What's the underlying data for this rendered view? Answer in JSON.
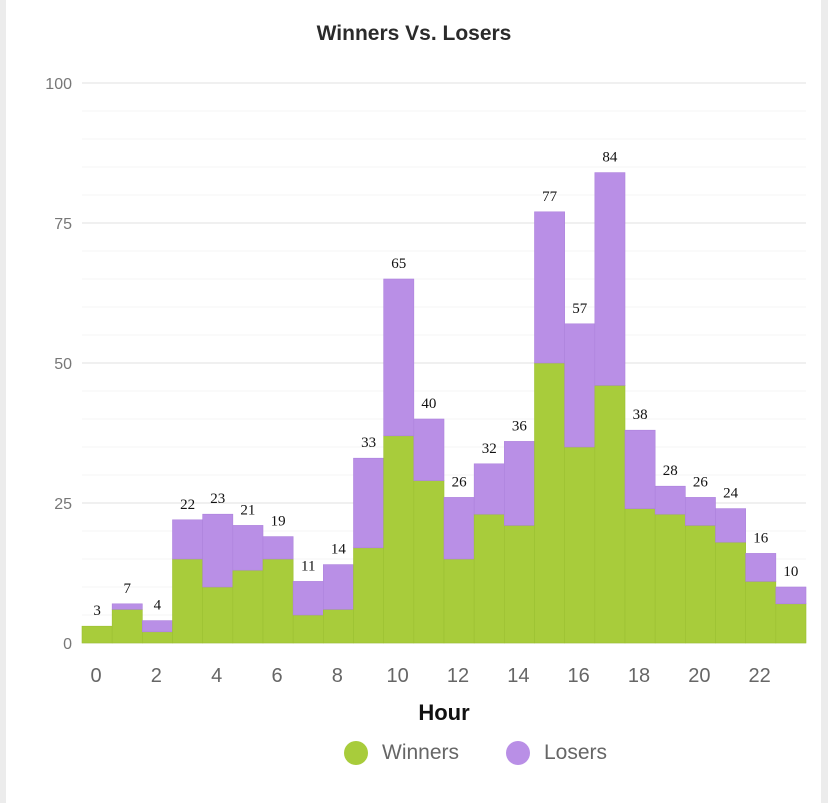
{
  "chart_data": {
    "type": "bar",
    "stacked": true,
    "title": "Winners Vs. Losers",
    "xlabel": "Hour",
    "ylabel": "",
    "ylim": [
      0,
      100
    ],
    "yticks": [
      0,
      25,
      50,
      75,
      100
    ],
    "xticks": [
      0,
      2,
      4,
      6,
      8,
      10,
      12,
      14,
      16,
      18,
      20,
      22
    ],
    "x": [
      0,
      1,
      2,
      3,
      4,
      5,
      6,
      7,
      8,
      9,
      10,
      11,
      12,
      13,
      14,
      15,
      16,
      17,
      18,
      19,
      20,
      21,
      22,
      23
    ],
    "series": [
      {
        "name": "Winners",
        "color": "#a8cc3b",
        "values": [
          3,
          6,
          2,
          15,
          10,
          13,
          15,
          5,
          6,
          17,
          37,
          29,
          15,
          23,
          21,
          50,
          35,
          46,
          24,
          23,
          21,
          18,
          11,
          7
        ]
      },
      {
        "name": "Losers",
        "color": "#b98fe6",
        "values": [
          0,
          1,
          2,
          7,
          13,
          8,
          4,
          6,
          8,
          16,
          28,
          11,
          11,
          9,
          15,
          27,
          22,
          38,
          14,
          5,
          5,
          6,
          5,
          3
        ]
      }
    ],
    "totals": [
      3,
      7,
      4,
      22,
      23,
      21,
      19,
      11,
      14,
      33,
      65,
      40,
      26,
      32,
      36,
      77,
      57,
      84,
      38,
      28,
      26,
      24,
      16,
      10
    ],
    "legend": "bottom-center",
    "grid": true
  }
}
